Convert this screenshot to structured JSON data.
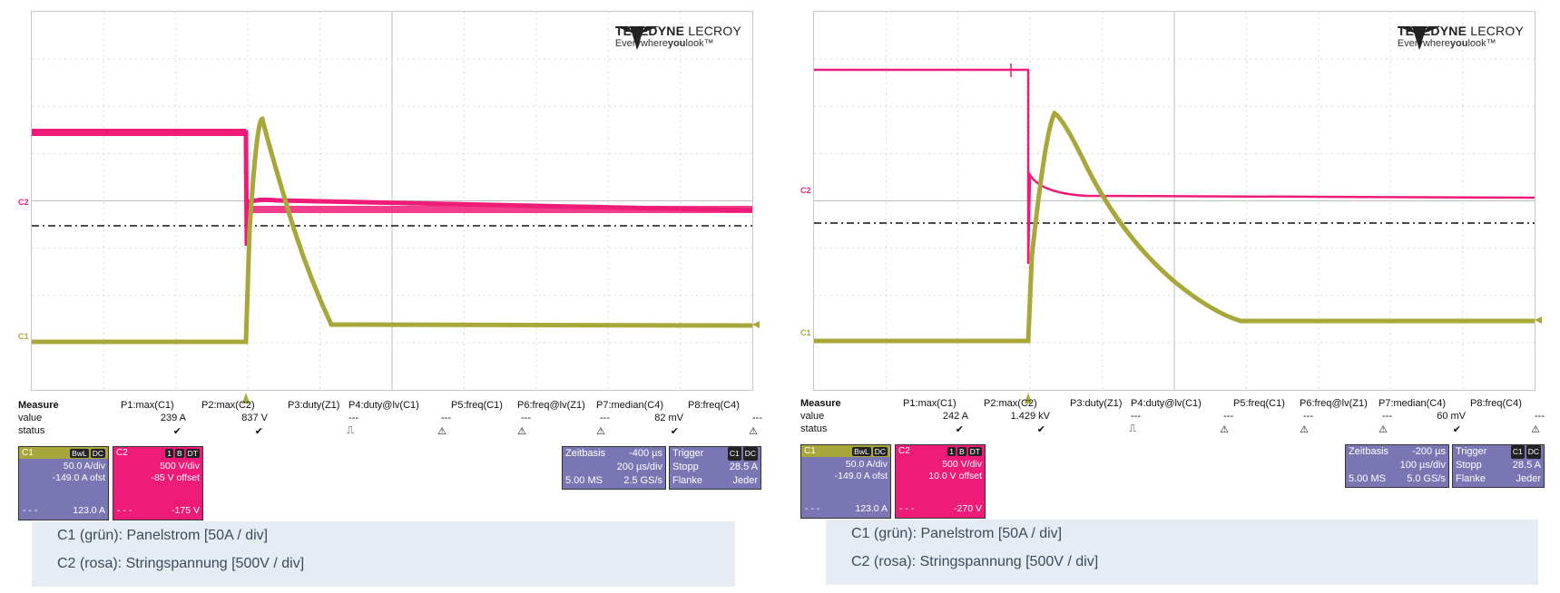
{
  "brand": {
    "name_bold": "TELEDYNE",
    "name_rest": " LECROY",
    "tagline_pre": "Everywhere",
    "tagline_bold": "you",
    "tagline_post": "look™"
  },
  "colors": {
    "c1": "#a8a83a",
    "c2": "#ee1b78",
    "box": "#7a76b4"
  },
  "measure_headers": {
    "title": "Measure",
    "value": "value",
    "status": "status"
  },
  "screens": [
    {
      "id": "left",
      "c1_label": "C1",
      "c2_label": "C2",
      "measures": [
        {
          "name": "P1:max(C1)",
          "value": "239 A",
          "status": "✔"
        },
        {
          "name": "P2:max(C2)",
          "value": "837 V",
          "status": "✔"
        },
        {
          "name": "P3:duty(Z1)",
          "value": "---",
          "status": "⎍"
        },
        {
          "name": "P4:duty@lv(C1)",
          "value": "---",
          "status": "⚠"
        },
        {
          "name": "P5:freq(C1)",
          "value": "---",
          "status": "⚠"
        },
        {
          "name": "P6:freq@lv(Z1)",
          "value": "---",
          "status": "⚠"
        },
        {
          "name": "P7:median(C4)",
          "value": "82 mV",
          "status": "✔"
        },
        {
          "name": "P8:freq(C4)",
          "value": "---",
          "status": "⚠"
        }
      ],
      "c1box": {
        "label": "C1",
        "tags": [
          "BwL",
          "DC"
        ],
        "scale": "50.0 A/div",
        "offset": "-149.0 A ofst",
        "bottom": "123.0 A",
        "dash": "- - -"
      },
      "c2box": {
        "label": "C2",
        "tags": [
          "1",
          "B",
          "DT"
        ],
        "scale": "500 V/div",
        "offset": "-85 V offset",
        "bottom": "-175 V",
        "dash": "- - -"
      },
      "timebase": {
        "label": "Zeitbasis",
        "delay": "-400 µs",
        "perdiv": "200 µs/div",
        "samples": "5.00 MS",
        "rate": "2.5 GS/s"
      },
      "trigger": {
        "label": "Trigger",
        "tags": [
          "C1",
          "DC"
        ],
        "mode": "Stopp",
        "level": "28.5 A",
        "edge_label": "Flanke",
        "edge": "Jeder"
      },
      "caption": [
        "C1 (grün): Panelstrom [50A / div]",
        "C2 (rosa): Stringspannung [500V / div]"
      ]
    },
    {
      "id": "right",
      "c1_label": "C1",
      "c2_label": "C2",
      "measures": [
        {
          "name": "P1:max(C1)",
          "value": "242 A",
          "status": "✔"
        },
        {
          "name": "P2:max(C2)",
          "value": "1.429 kV",
          "status": "✔"
        },
        {
          "name": "P3:duty(Z1)",
          "value": "---",
          "status": "⎍"
        },
        {
          "name": "P4:duty@lv(C1)",
          "value": "---",
          "status": "⚠"
        },
        {
          "name": "P5:freq(C1)",
          "value": "---",
          "status": "⚠"
        },
        {
          "name": "P6:freq@lv(Z1)",
          "value": "---",
          "status": "⚠"
        },
        {
          "name": "P7:median(C4)",
          "value": "60 mV",
          "status": "✔"
        },
        {
          "name": "P8:freq(C4)",
          "value": "---",
          "status": "⚠"
        }
      ],
      "c1box": {
        "label": "C1",
        "tags": [
          "BwL",
          "DC"
        ],
        "scale": "50.0 A/div",
        "offset": "-149.0 A ofst",
        "bottom": "123.0 A",
        "dash": "- - -"
      },
      "c2box": {
        "label": "C2",
        "tags": [
          "1",
          "B",
          "DT"
        ],
        "scale": "500 V/div",
        "offset": "10.0 V offset",
        "bottom": "-270 V",
        "dash": "- - -"
      },
      "timebase": {
        "label": "Zeitbasis",
        "delay": "-200 µs",
        "perdiv": "100 µs/div",
        "samples": "5.00 MS",
        "rate": "5.0 GS/s"
      },
      "trigger": {
        "label": "Trigger",
        "tags": [
          "C1",
          "DC"
        ],
        "mode": "Stopp",
        "level": "28.5 A",
        "edge_label": "Flanke",
        "edge": "Jeder"
      },
      "caption": [
        "C1 (grün): Panelstrom [50A / div]",
        "C2 (rosa): Stringspannung [500V / div]"
      ]
    }
  ]
}
